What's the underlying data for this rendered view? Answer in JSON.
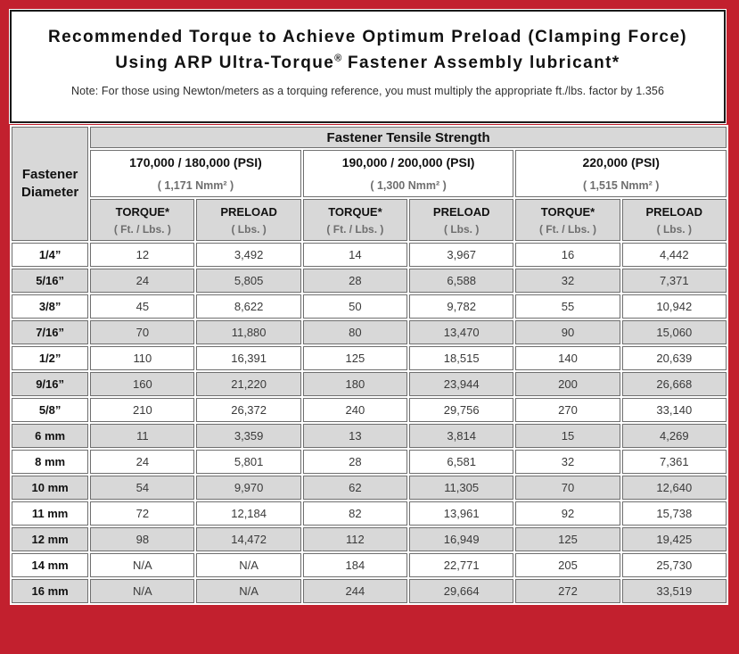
{
  "title": {
    "line1": "Recommended Torque to Achieve Optimum Preload (Clamping Force)",
    "line2_pre": "Using ARP Ultra-Torque",
    "line2_sup": "®",
    "line2_post": " Fastener Assembly lubricant*",
    "note": "Note: For those using Newton/meters as a torquing reference, you must multiply the appropriate ft./lbs. factor by 1.356"
  },
  "table": {
    "corner_header": "Fastener Diameter",
    "main_header": "Fastener Tensile Strength",
    "groups": [
      {
        "psi": "170,000 / 180,000 (PSI)",
        "nmm": "( 1,171 Nmm² )"
      },
      {
        "psi": "190,000 / 200,000 (PSI)",
        "nmm": "( 1,300 Nmm² )"
      },
      {
        "psi": "220,000 (PSI)",
        "nmm": "( 1,515 Nmm² )"
      }
    ],
    "sub_headers": {
      "torque_label": "TORQUE*",
      "torque_unit": "( Ft. / Lbs. )",
      "preload_label": "PRELOAD",
      "preload_unit": "( Lbs. )"
    },
    "rows": [
      {
        "diameter": "1/4”",
        "values": [
          "12",
          "3,492",
          "14",
          "3,967",
          "16",
          "4,442"
        ]
      },
      {
        "diameter": "5/16”",
        "values": [
          "24",
          "5,805",
          "28",
          "6,588",
          "32",
          "7,371"
        ]
      },
      {
        "diameter": "3/8”",
        "values": [
          "45",
          "8,622",
          "50",
          "9,782",
          "55",
          "10,942"
        ]
      },
      {
        "diameter": "7/16”",
        "values": [
          "70",
          "11,880",
          "80",
          "13,470",
          "90",
          "15,060"
        ]
      },
      {
        "diameter": "1/2”",
        "values": [
          "110",
          "16,391",
          "125",
          "18,515",
          "140",
          "20,639"
        ]
      },
      {
        "diameter": "9/16”",
        "values": [
          "160",
          "21,220",
          "180",
          "23,944",
          "200",
          "26,668"
        ]
      },
      {
        "diameter": "5/8”",
        "values": [
          "210",
          "26,372",
          "240",
          "29,756",
          "270",
          "33,140"
        ]
      },
      {
        "diameter": "6 mm",
        "values": [
          "11",
          "3,359",
          "13",
          "3,814",
          "15",
          "4,269"
        ]
      },
      {
        "diameter": "8 mm",
        "values": [
          "24",
          "5,801",
          "28",
          "6,581",
          "32",
          "7,361"
        ]
      },
      {
        "diameter": "10 mm",
        "values": [
          "54",
          "9,970",
          "62",
          "11,305",
          "70",
          "12,640"
        ]
      },
      {
        "diameter": "11 mm",
        "values": [
          "72",
          "12,184",
          "82",
          "13,961",
          "92",
          "15,738"
        ]
      },
      {
        "diameter": "12 mm",
        "values": [
          "98",
          "14,472",
          "112",
          "16,949",
          "125",
          "19,425"
        ]
      },
      {
        "diameter": "14 mm",
        "values": [
          "N/A",
          "N/A",
          "184",
          "22,771",
          "205",
          "25,730"
        ]
      },
      {
        "diameter": "16 mm",
        "values": [
          "N/A",
          "N/A",
          "244",
          "29,664",
          "272",
          "33,519"
        ]
      }
    ]
  },
  "colors": {
    "frame_red": "#c2202e",
    "panel_border": "#1a1a1a",
    "cell_border": "#6f6f6f",
    "shaded_cell": "#d8d8d8",
    "unit_text": "#6e6e6e"
  }
}
